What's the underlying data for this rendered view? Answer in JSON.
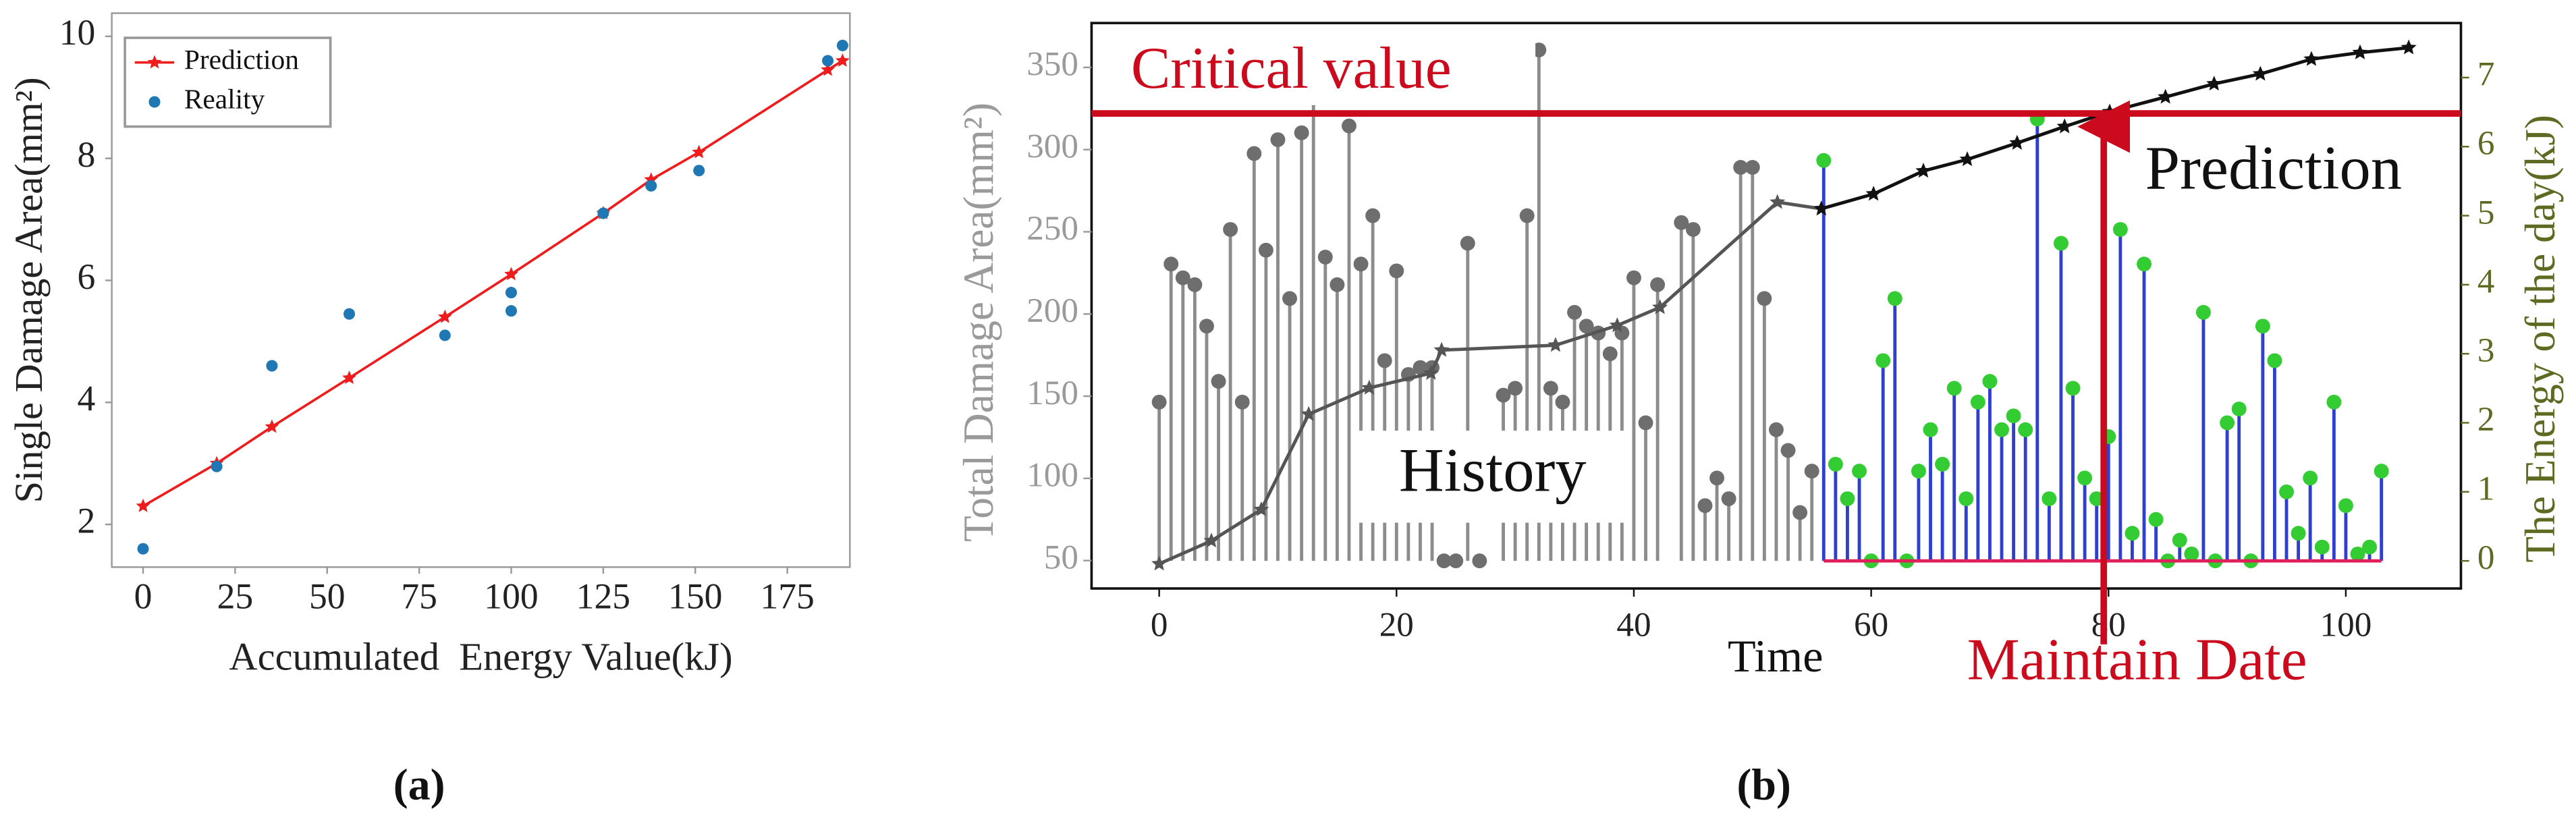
{
  "chart_data": [
    {
      "type": "line",
      "panel_label": "(a)",
      "xlabel": "Accumulated  Energy Value(kJ)",
      "ylabel": "Single Damage Area(mm²)",
      "xlim": [
        -8.5,
        192
      ],
      "ylim": [
        1.3,
        10.38
      ],
      "xticks": [
        0,
        25,
        50,
        75,
        100,
        125,
        150,
        175
      ],
      "yticks": [
        2,
        4,
        6,
        8,
        10
      ],
      "legend": "upper-left",
      "series": [
        {
          "name": "Prediction",
          "color": "#ee1c1c",
          "style": "line-star",
          "x": [
            0,
            20,
            35,
            56,
            82,
            100,
            125,
            138,
            151,
            186,
            190
          ],
          "values": [
            2.3,
            3.0,
            3.6,
            4.4,
            5.4,
            6.1,
            7.1,
            7.65,
            8.1,
            9.45,
            9.6
          ]
        },
        {
          "name": "Reality",
          "color": "#1f77b4",
          "style": "markers",
          "x": [
            0,
            20,
            35,
            56,
            82,
            100,
            100,
            125,
            138,
            151,
            186,
            190
          ],
          "values": [
            1.6,
            2.95,
            4.6,
            5.45,
            5.1,
            5.5,
            5.8,
            7.1,
            7.55,
            7.8,
            9.6,
            9.85
          ]
        }
      ]
    },
    {
      "type": "stem",
      "panel_label": "(b)",
      "xlabel": "Time",
      "ylabel": "Total Damage Area(mm²)",
      "y2label": "The Energy of the day(kJ)",
      "xlim": [
        -5.7,
        109.7
      ],
      "ylim": [
        33,
        377
      ],
      "y2lim": [
        -0.4,
        7.79
      ],
      "xticks": [
        0,
        20,
        40,
        60,
        80,
        100
      ],
      "yticks": [
        50,
        100,
        150,
        200,
        250,
        300,
        350
      ],
      "y2ticks": [
        0,
        1,
        2,
        3,
        4,
        5,
        6,
        7
      ],
      "annotations": {
        "critical": {
          "text": "Critical value",
          "y": 322
        },
        "maintain": {
          "text": "Maintain Date",
          "x": 79.6
        },
        "history": "History",
        "prediction": "Prediction"
      },
      "series": [
        {
          "style": "stem",
          "axis": "y2",
          "color": "#8c8c8c",
          "marker_color": "#6e6e6e",
          "x": [
            0,
            1,
            2,
            3,
            4,
            5,
            6,
            7,
            8,
            9,
            10,
            11,
            12,
            13,
            14,
            15,
            16,
            17,
            18,
            19,
            20,
            21,
            22,
            23,
            24,
            25,
            26,
            27,
            29,
            30,
            31,
            32,
            33,
            34,
            35,
            36,
            37,
            38,
            39,
            40,
            41,
            42,
            44,
            45,
            46,
            47,
            48,
            49,
            50,
            51,
            52,
            53,
            54,
            55
          ],
          "values": [
            2.3,
            4.3,
            4.1,
            4.0,
            3.4,
            2.6,
            4.8,
            2.3,
            5.9,
            4.5,
            6.1,
            3.8,
            6.2,
            6.7,
            4.4,
            4.0,
            6.3,
            4.3,
            5.0,
            2.9,
            4.2,
            2.7,
            2.8,
            2.8,
            0,
            0,
            4.6,
            0,
            2.4,
            2.5,
            5.0,
            7.4,
            2.5,
            2.3,
            3.6,
            3.4,
            3.3,
            3.0,
            3.3,
            4.1,
            2.0,
            4.0,
            4.9,
            4.8,
            0.8,
            1.2,
            0.9,
            5.7,
            5.7,
            3.8,
            1.9,
            1.6,
            0.7,
            1.3
          ]
        },
        {
          "style": "stem",
          "axis": "y2",
          "color": "#2f3fd0",
          "marker_color": "#33cc33",
          "x": [
            56,
            57,
            58,
            59,
            60,
            61,
            62,
            63,
            64,
            65,
            66,
            67,
            68,
            69,
            70,
            71,
            72,
            73,
            74,
            75,
            76,
            77,
            78,
            79,
            80,
            81,
            82,
            83,
            84,
            85,
            86,
            87,
            88,
            89,
            90,
            91,
            92,
            93,
            94,
            95,
            96,
            97,
            98,
            99,
            100,
            101,
            102,
            103
          ],
          "values": [
            5.8,
            1.4,
            0.9,
            1.3,
            0,
            2.9,
            3.8,
            0,
            1.3,
            1.9,
            1.4,
            2.5,
            0.9,
            2.3,
            2.6,
            1.9,
            2.1,
            1.9,
            6.4,
            0.9,
            4.6,
            2.5,
            1.2,
            0.9,
            1.8,
            4.8,
            0.4,
            4.3,
            0.6,
            0,
            0.3,
            0.1,
            3.6,
            0,
            2.0,
            2.2,
            0,
            3.4,
            2.9,
            1.0,
            0.4,
            1.2,
            0.2,
            2.3,
            0.8,
            0.1,
            0.2,
            1.3
          ]
        },
        {
          "style": "line",
          "color": "#555555",
          "x": [
            0,
            4.4,
            8.6,
            12.6,
            17.7,
            22.9,
            23.8,
            33.4,
            38.6,
            42.2,
            52.1,
            55.8
          ],
          "values": [
            48,
            62,
            81,
            139,
            155,
            164,
            178,
            181,
            193,
            204,
            268,
            264
          ]
        },
        {
          "style": "line",
          "color": "#111111",
          "x": [
            55.8,
            60.2,
            64.4,
            68.1,
            72.3,
            76.3,
            80.1,
            84.8,
            88.9,
            92.8,
            97.1,
            101.2,
            105.3
          ],
          "values": [
            264,
            273,
            287,
            294,
            304,
            314,
            323,
            332,
            340,
            346,
            355,
            359,
            362
          ]
        }
      ]
    }
  ]
}
